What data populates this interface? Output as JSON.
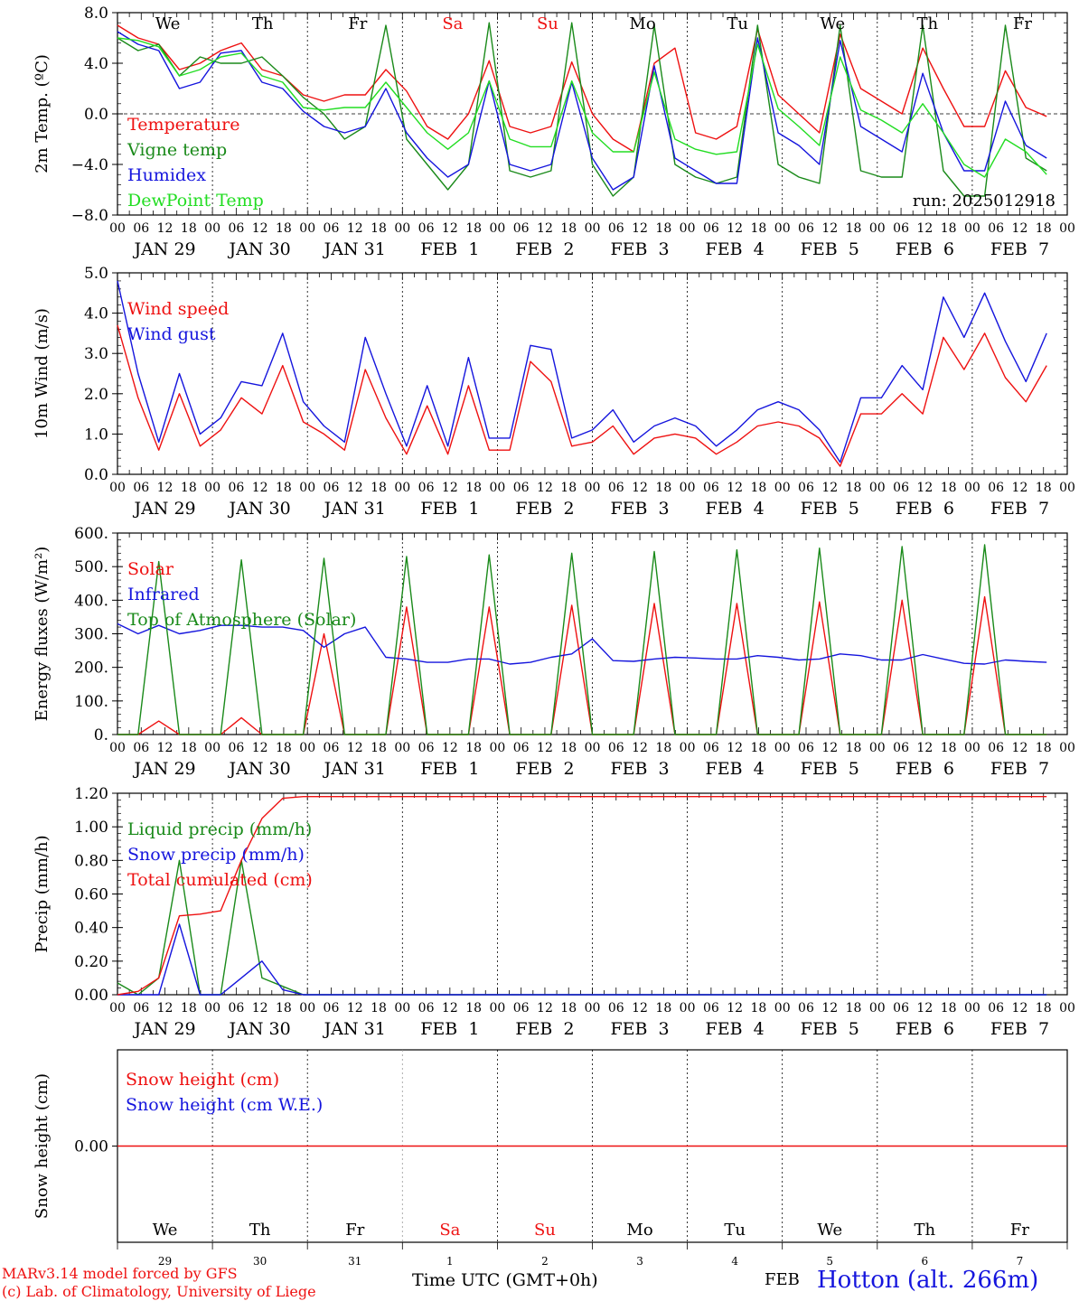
{
  "page": {
    "run": "run: 2025012918",
    "credit_line1": "MARv3.14 model forced by GFS",
    "credit_line2": "(c) Lab. of Climatology, University of Liege",
    "xlabel": "Time UTC (GMT+0h)",
    "month_small": "FEB",
    "station": "Hotton (alt. 266m)"
  },
  "colors": {
    "red": "#ee1111",
    "green": "#1a8a1a",
    "blue": "#1515dd",
    "lightgreen": "#22dd22"
  },
  "days": {
    "weekdays": [
      "We",
      "Th",
      "Fr",
      "Sa",
      "Su",
      "Mo",
      "Tu",
      "We",
      "Th",
      "Fr"
    ],
    "weekend_flags": [
      false,
      false,
      false,
      true,
      true,
      false,
      false,
      false,
      false,
      false
    ],
    "date_labels": [
      "JAN 29",
      "JAN 30",
      "JAN 31",
      "FEB  1",
      "FEB  2",
      "FEB  3",
      "FEB  4",
      "FEB  5",
      "FEB  6",
      "FEB  7"
    ],
    "day_numbers": [
      "29",
      "30",
      "31",
      "1",
      "2",
      "3",
      "4",
      "5",
      "6",
      "7"
    ],
    "hour_ticks": [
      "00",
      "06",
      "12",
      "18"
    ],
    "last_tick": "00"
  },
  "chart_data": [
    {
      "type": "line",
      "ylabel": "2m Temp. (ºC)",
      "ylim": [
        -8,
        8
      ],
      "yticks": [
        "8.0",
        "4.0",
        "0.0",
        "−4.0",
        "−8.0"
      ],
      "ytick_values": [
        8,
        4,
        0,
        -4,
        -8
      ],
      "zero_line": true,
      "x_unit": "hours since JAN 29 00 UTC, 6-hourly",
      "series": [
        {
          "name": "Temperature",
          "color": "#ee1111",
          "values": [
            7,
            6,
            5.5,
            3.5,
            4,
            5,
            5.6,
            3.5,
            3,
            1.5,
            1,
            1.5,
            1.5,
            3.5,
            1.8,
            -1,
            -2,
            0,
            4.2,
            -1,
            -1.5,
            -1,
            4.1,
            0,
            -2,
            -3,
            4,
            5.2,
            -1.5,
            -2,
            -1,
            6.7,
            1.5,
            0,
            -1.5,
            6.3,
            2,
            1,
            0,
            5.2,
            2,
            -1,
            -1,
            3.4,
            0.5,
            -0.2
          ]
        },
        {
          "name": "Vigne temp",
          "color": "#1a8a1a",
          "values": [
            6,
            5,
            5.5,
            3,
            4.5,
            4,
            4,
            4.5,
            3,
            1.3,
            0,
            -2,
            -1,
            7,
            -2,
            -4,
            -6,
            -4,
            7.2,
            -4.5,
            -5,
            -4.5,
            7.2,
            -4,
            -6.5,
            -5,
            7,
            -4,
            -5,
            -5.5,
            -5,
            7,
            -4,
            -5,
            -5.5,
            7,
            -4.5,
            -5,
            -5,
            7,
            -4.5,
            -6.5,
            -6.5,
            7,
            -3.5,
            -4.5
          ]
        },
        {
          "name": "Humidex",
          "color": "#1515dd",
          "values": [
            6.5,
            5.5,
            5,
            2,
            2.5,
            4.8,
            5,
            2.5,
            2,
            0.2,
            -1,
            -1.5,
            -1,
            2,
            -1.5,
            -3.5,
            -5,
            -4,
            2.6,
            -4,
            -4.5,
            -4,
            2.5,
            -3.5,
            -6,
            -5,
            3.8,
            -3.5,
            -4.5,
            -5.5,
            -5.5,
            6,
            -1.5,
            -2.5,
            -4,
            5.8,
            -1,
            -2,
            -3,
            3.2,
            -1.5,
            -4.5,
            -4.5,
            1,
            -2.5,
            -3.5
          ]
        },
        {
          "name": "DewPoint Temp",
          "color": "#22dd22",
          "values": [
            6,
            5.8,
            5.3,
            3,
            3.5,
            4.5,
            4.8,
            3,
            2.5,
            0.5,
            0.3,
            0.5,
            0.5,
            2.5,
            0.5,
            -1.5,
            -2.8,
            -1.5,
            2.6,
            -2,
            -2.6,
            -2.6,
            2.6,
            -1.5,
            -3,
            -3,
            3.3,
            -2,
            -2.8,
            -3.2,
            -3,
            5.5,
            0.4,
            -1,
            -2.5,
            4.5,
            0.3,
            -0.5,
            -1.5,
            0.8,
            -1.5,
            -4,
            -5,
            -2,
            -3,
            -4.8
          ]
        }
      ]
    },
    {
      "type": "line",
      "ylabel": "10m Wind (m/s)",
      "ylim": [
        0,
        5
      ],
      "yticks": [
        "5.0",
        "4.0",
        "3.0",
        "2.0",
        "1.0",
        "0.0"
      ],
      "ytick_values": [
        5,
        4,
        3,
        2,
        1,
        0
      ],
      "x_unit": "hours since JAN 29 00 UTC, 6-hourly",
      "series": [
        {
          "name": "Wind speed",
          "color": "#ee1111",
          "values": [
            3.7,
            1.9,
            0.6,
            2,
            0.7,
            1.1,
            1.9,
            1.5,
            2.7,
            1.3,
            1,
            0.6,
            2.6,
            1.4,
            0.5,
            1.7,
            0.5,
            2.2,
            0.6,
            0.6,
            2.8,
            2.3,
            0.7,
            0.8,
            1.2,
            0.5,
            0.9,
            1,
            0.9,
            0.5,
            0.8,
            1.2,
            1.3,
            1.2,
            0.9,
            0.2,
            1.5,
            1.5,
            2,
            1.5,
            3.4,
            2.6,
            3.5,
            2.4,
            1.8,
            2.7
          ]
        },
        {
          "name": "Wind gust",
          "color": "#1515dd",
          "values": [
            4.8,
            2.5,
            0.8,
            2.5,
            1,
            1.4,
            2.3,
            2.2,
            3.5,
            1.8,
            1.2,
            0.8,
            3.4,
            2,
            0.7,
            2.2,
            0.7,
            2.9,
            0.9,
            0.9,
            3.2,
            3.1,
            0.9,
            1.1,
            1.6,
            0.8,
            1.2,
            1.4,
            1.2,
            0.7,
            1.1,
            1.6,
            1.8,
            1.6,
            1.1,
            0.3,
            1.9,
            1.9,
            2.7,
            2.1,
            4.4,
            3.4,
            4.5,
            3.3,
            2.3,
            3.5
          ]
        }
      ]
    },
    {
      "type": "line",
      "ylabel": "Energy fluxes (W/m²)",
      "ylim": [
        0,
        600
      ],
      "yticks": [
        "600.",
        "500.",
        "400.",
        "300.",
        "200.",
        "100.",
        "0."
      ],
      "ytick_values": [
        600,
        500,
        400,
        300,
        200,
        100,
        0
      ],
      "x_unit": "hours since JAN 29 00 UTC, 6-hourly",
      "series": [
        {
          "name": "Solar",
          "color": "#ee1111",
          "values": [
            0,
            0,
            40,
            0,
            0,
            0,
            50,
            0,
            0,
            0,
            300,
            0,
            0,
            0,
            380,
            0,
            0,
            0,
            380,
            0,
            0,
            0,
            385,
            0,
            0,
            0,
            390,
            0,
            0,
            0,
            390,
            0,
            0,
            0,
            395,
            0,
            0,
            0,
            400,
            0,
            0,
            0,
            410,
            0,
            0,
            0
          ]
        },
        {
          "name": "Infrared",
          "color": "#1515dd",
          "values": [
            330,
            300,
            325,
            300,
            310,
            325,
            325,
            320,
            320,
            310,
            260,
            300,
            320,
            230,
            225,
            215,
            215,
            225,
            225,
            210,
            215,
            230,
            240,
            285,
            220,
            218,
            225,
            230,
            228,
            225,
            225,
            235,
            230,
            222,
            225,
            240,
            235,
            222,
            222,
            238,
            225,
            212,
            210,
            222,
            218,
            215
          ]
        },
        {
          "name": "Top of Atmosphere (Solar)",
          "color": "#1a8a1a",
          "values": [
            0,
            0,
            515,
            0,
            0,
            0,
            520,
            0,
            0,
            0,
            525,
            0,
            0,
            0,
            530,
            0,
            0,
            0,
            535,
            0,
            0,
            0,
            540,
            0,
            0,
            0,
            545,
            0,
            0,
            0,
            550,
            0,
            0,
            0,
            555,
            0,
            0,
            0,
            560,
            0,
            0,
            0,
            565,
            0,
            0,
            0
          ]
        }
      ]
    },
    {
      "type": "line",
      "ylabel": "Precip (mm/h)",
      "ylim": [
        0,
        1.2
      ],
      "yticks": [
        "1.20",
        "1.00",
        "0.80",
        "0.60",
        "0.40",
        "0.20",
        "0.00"
      ],
      "ytick_values": [
        1.2,
        1,
        0.8,
        0.6,
        0.4,
        0.2,
        0
      ],
      "x_unit": "hours since JAN 29 00 UTC, 6-hourly",
      "series": [
        {
          "name": "Liquid precip (mm/h)",
          "color": "#1a8a1a",
          "values": [
            0.07,
            0,
            0.1,
            0.8,
            0,
            0,
            0.8,
            0.1,
            0.05,
            0,
            0,
            0,
            0,
            0,
            0,
            0,
            0,
            0,
            0,
            0,
            0,
            0,
            0,
            0,
            0,
            0,
            0,
            0,
            0,
            0,
            0,
            0,
            0,
            0,
            0,
            0,
            0,
            0,
            0,
            0,
            0,
            0,
            0,
            0,
            0,
            0
          ]
        },
        {
          "name": "Snow precip (mm/h)",
          "color": "#1515dd",
          "values": [
            0,
            0,
            0,
            0.42,
            0,
            0,
            0.1,
            0.2,
            0.03,
            0,
            0,
            0,
            0,
            0,
            0,
            0,
            0,
            0,
            0,
            0,
            0,
            0,
            0,
            0,
            0,
            0,
            0,
            0,
            0,
            0,
            0,
            0,
            0,
            0,
            0,
            0,
            0,
            0,
            0,
            0,
            0,
            0,
            0,
            0,
            0,
            0
          ]
        },
        {
          "name": "Total cumulated (cm)",
          "color": "#ee1111",
          "values": [
            0,
            0.02,
            0.1,
            0.47,
            0.48,
            0.5,
            0.8,
            1.05,
            1.17,
            1.18,
            1.18,
            1.18,
            1.18,
            1.18,
            1.18,
            1.18,
            1.18,
            1.18,
            1.18,
            1.18,
            1.18,
            1.18,
            1.18,
            1.18,
            1.18,
            1.18,
            1.18,
            1.18,
            1.18,
            1.18,
            1.18,
            1.18,
            1.18,
            1.18,
            1.18,
            1.18,
            1.18,
            1.18,
            1.18,
            1.18,
            1.18,
            1.18,
            1.18,
            1.18,
            1.18,
            1.18
          ]
        }
      ]
    },
    {
      "type": "line",
      "ylabel": "Snow height (cm)",
      "ylim": [
        -1,
        1
      ],
      "yticks": [
        "0.00"
      ],
      "ytick_values": [
        0
      ],
      "x_unit": "hours since JAN 29 00 UTC, 6-hourly",
      "series": [
        {
          "name": "Snow height (cm)",
          "color": "#ee1111",
          "values": [
            0,
            0
          ]
        },
        {
          "name": "Snow height (cm W.E.)",
          "color": "#1515dd",
          "values": []
        }
      ]
    }
  ]
}
